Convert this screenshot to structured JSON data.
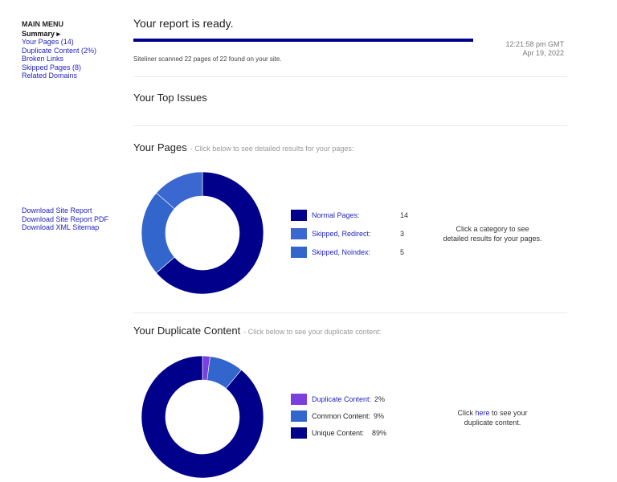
{
  "sidebar": {
    "menu_title": "MAIN MENU",
    "items": [
      {
        "label": "Summary ▸",
        "active": true
      },
      {
        "label": "Your Pages (14)"
      },
      {
        "label": "Duplicate Content (2%)"
      },
      {
        "label": "Broken Links"
      },
      {
        "label": "Skipped Pages (8)"
      },
      {
        "label": "Related Domains"
      }
    ],
    "downloads": [
      "Download Site Report",
      "Download Site Report PDF",
      "Download XML Sitemap"
    ]
  },
  "report": {
    "title": "Your report is ready.",
    "progress_percent": 100,
    "time": "12:21:58 pm GMT",
    "date": "Apr 19, 2022",
    "scan_text": "Siteliner scanned 22 pages of 22 found on your site."
  },
  "top_issues": {
    "title": "Your Top Issues"
  },
  "pages": {
    "title": "Your Pages",
    "subtitle": "- Click below to see detailed results for your pages:",
    "legend": [
      {
        "label": "Normal Pages:",
        "value": 14,
        "color": "#00008b"
      },
      {
        "label": "Skipped, Redirect:",
        "value": 3,
        "color": "#3a68d0"
      },
      {
        "label": "Skipped, Noindex:",
        "value": 5,
        "color": "#3366cc"
      }
    ],
    "hint_line1": "Click a category to see",
    "hint_line2": "detailed results for your pages."
  },
  "duplicate": {
    "title": "Your Duplicate Content",
    "subtitle": "- Click below to see your duplicate content:",
    "legend": [
      {
        "label": "Duplicate Content:",
        "value": "2%",
        "pct": 2,
        "color": "#7b3fe0"
      },
      {
        "label": "Common Content:",
        "value": "9%",
        "pct": 9,
        "color": "#3366cc"
      },
      {
        "label": "Unique Content:",
        "value": "89%",
        "pct": 89,
        "color": "#00008b"
      }
    ],
    "hint_pre": "Click ",
    "hint_link": "here",
    "hint_post": " to see your",
    "hint_line2": "duplicate content."
  }
}
